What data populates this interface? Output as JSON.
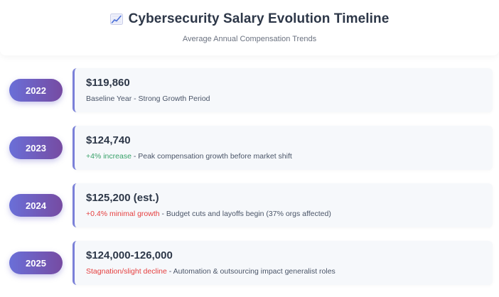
{
  "header": {
    "icon": "chart-increasing-icon",
    "title": "Cybersecurity Salary Evolution Timeline",
    "subtitle": "Average Annual Compensation Trends"
  },
  "timeline": [
    {
      "year": "2022",
      "amount": "$119,860",
      "highlight": "",
      "highlight_color": "",
      "text": "Baseline Year - Strong Growth Period"
    },
    {
      "year": "2023",
      "amount": "$124,740",
      "highlight": "+4% increase",
      "highlight_color": "#38a169",
      "text": " - Peak compensation growth before market shift"
    },
    {
      "year": "2024",
      "amount": "$125,200 (est.)",
      "highlight": "+0.4% minimal growth",
      "highlight_color": "#e53e3e",
      "text": " - Budget cuts and layoffs begin (37% orgs affected)"
    },
    {
      "year": "2025",
      "amount": "$124,000-126,000",
      "highlight": "Stagnation/slight decline",
      "highlight_color": "#e53e3e",
      "text": " - Automation & outsourcing impact generalist roles"
    }
  ],
  "colors": {
    "accent_start": "#6a6fd8",
    "accent_end": "#764ba2",
    "card_border": "#7a80d8",
    "positive": "#38a169",
    "negative": "#e53e3e"
  }
}
